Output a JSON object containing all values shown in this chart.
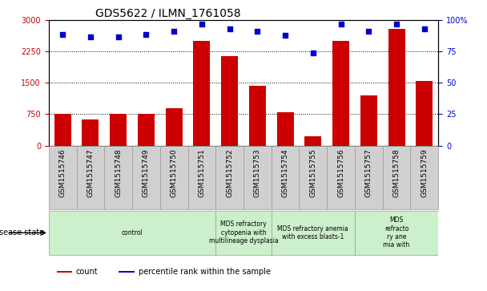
{
  "title": "GDS5622 / ILMN_1761058",
  "categories": [
    "GSM1515746",
    "GSM1515747",
    "GSM1515748",
    "GSM1515749",
    "GSM1515750",
    "GSM1515751",
    "GSM1515752",
    "GSM1515753",
    "GSM1515754",
    "GSM1515755",
    "GSM1515756",
    "GSM1515757",
    "GSM1515758",
    "GSM1515759"
  ],
  "bar_values": [
    750,
    620,
    750,
    750,
    900,
    2500,
    2150,
    1430,
    800,
    220,
    2500,
    1200,
    2800,
    1550
  ],
  "dot_values": [
    89,
    87,
    87,
    89,
    91,
    97,
    93,
    91,
    88,
    74,
    97,
    91,
    97,
    93
  ],
  "ylim_left": [
    0,
    3000
  ],
  "ylim_right": [
    0,
    100
  ],
  "yticks_left": [
    0,
    750,
    1500,
    2250,
    3000
  ],
  "ytick_labels_left": [
    "0",
    "750",
    "1500",
    "2250",
    "3000"
  ],
  "yticks_right": [
    0,
    25,
    50,
    75,
    100
  ],
  "ytick_labels_right": [
    "0",
    "25",
    "50",
    "75",
    "100%"
  ],
  "bar_color": "#cc0000",
  "dot_color": "#0000cc",
  "group_boundaries": [
    {
      "label": "control",
      "start": 0,
      "end": 6
    },
    {
      "label": "MDS refractory\ncytopenia with\nmultilineage dysplasia",
      "start": 6,
      "end": 8
    },
    {
      "label": "MDS refractory anemia\nwith excess blasts-1",
      "start": 8,
      "end": 11
    },
    {
      "label": "MDS\nrefracto\nry ane\nmia with",
      "start": 11,
      "end": 14
    }
  ],
  "group_color": "#ccf0cc",
  "tick_bg_color": "#d0d0d0",
  "disease_state_label": "disease state",
  "legend_items": [
    {
      "label": "count",
      "color": "#cc0000"
    },
    {
      "label": "percentile rank within the sample",
      "color": "#0000cc"
    }
  ]
}
